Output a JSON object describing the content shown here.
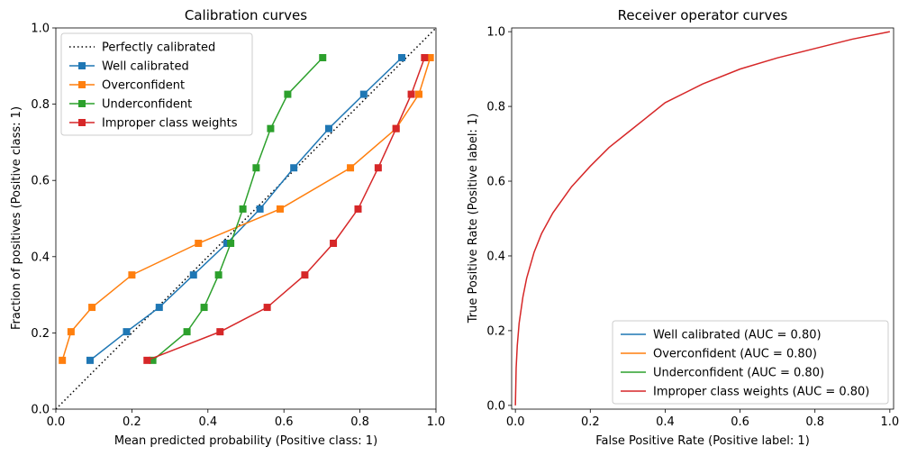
{
  "chart_data": [
    {
      "type": "line",
      "title": "Calibration curves",
      "xlabel": "Mean predicted probability (Positive class: 1)",
      "ylabel": "Fraction of positives (Positive class: 1)",
      "xlim": [
        0,
        1
      ],
      "ylim": [
        0,
        1
      ],
      "xticks": [
        "0.0",
        "0.2",
        "0.4",
        "0.6",
        "0.8",
        "1.0"
      ],
      "yticks": [
        "0.0",
        "0.2",
        "0.4",
        "0.6",
        "0.8",
        "1.0"
      ],
      "legend_position": "upper-left",
      "reference": {
        "name": "Perfectly calibrated",
        "x": [
          0,
          1
        ],
        "y": [
          0,
          1
        ],
        "color": "#000000",
        "style": "dotted"
      },
      "series": [
        {
          "name": "Well calibrated",
          "color": "#1f77b4",
          "x": [
            0.09,
            0.186,
            0.272,
            0.362,
            0.45,
            0.537,
            0.626,
            0.718,
            0.81,
            0.91
          ],
          "y": [
            0.128,
            0.203,
            0.267,
            0.352,
            0.435,
            0.525,
            0.633,
            0.736,
            0.826,
            0.922
          ]
        },
        {
          "name": "Overconfident",
          "color": "#ff7f0e",
          "x": [
            0.017,
            0.04,
            0.095,
            0.2,
            0.375,
            0.59,
            0.775,
            0.895,
            0.955,
            0.985
          ],
          "y": [
            0.128,
            0.203,
            0.267,
            0.352,
            0.435,
            0.525,
            0.633,
            0.736,
            0.826,
            0.922
          ]
        },
        {
          "name": "Underconfident",
          "color": "#2ca02c",
          "x": [
            0.255,
            0.345,
            0.39,
            0.428,
            0.46,
            0.492,
            0.527,
            0.565,
            0.61,
            0.702
          ],
          "y": [
            0.128,
            0.203,
            0.267,
            0.352,
            0.435,
            0.525,
            0.633,
            0.736,
            0.826,
            0.922
          ]
        },
        {
          "name": "Improper class weights",
          "color": "#d62728",
          "x": [
            0.24,
            0.432,
            0.556,
            0.655,
            0.73,
            0.795,
            0.848,
            0.895,
            0.935,
            0.97
          ],
          "y": [
            0.128,
            0.203,
            0.267,
            0.352,
            0.435,
            0.525,
            0.633,
            0.736,
            0.826,
            0.922
          ]
        }
      ]
    },
    {
      "type": "line",
      "title": "Receiver operator curves",
      "xlabel": "False Positive Rate (Positive label: 1)",
      "ylabel": "True Positive Rate (Positive label: 1)",
      "xlim": [
        -0.01,
        1.01
      ],
      "ylim": [
        -0.01,
        1.01
      ],
      "xticks": [
        "0.0",
        "0.2",
        "0.4",
        "0.6",
        "0.8",
        "1.0"
      ],
      "yticks": [
        "0.0",
        "0.2",
        "0.4",
        "0.6",
        "0.8",
        "1.0"
      ],
      "legend_position": "lower-right",
      "series": [
        {
          "name": "Well calibrated (AUC = 0.80)",
          "color": "#1f77b4"
        },
        {
          "name": "Overconfident (AUC = 0.80)",
          "color": "#ff7f0e"
        },
        {
          "name": "Underconfident (AUC = 0.80)",
          "color": "#2ca02c"
        },
        {
          "name": "Improper class weights (AUC = 0.80)",
          "color": "#d62728",
          "x": [
            0,
            0.002,
            0.005,
            0.01,
            0.02,
            0.03,
            0.05,
            0.07,
            0.1,
            0.15,
            0.2,
            0.25,
            0.3,
            0.35,
            0.4,
            0.5,
            0.6,
            0.7,
            0.8,
            0.9,
            1.0
          ],
          "y": [
            0,
            0.1,
            0.16,
            0.22,
            0.29,
            0.34,
            0.41,
            0.46,
            0.515,
            0.585,
            0.64,
            0.69,
            0.73,
            0.77,
            0.81,
            0.86,
            0.9,
            0.93,
            0.955,
            0.98,
            1.0
          ]
        }
      ]
    }
  ]
}
